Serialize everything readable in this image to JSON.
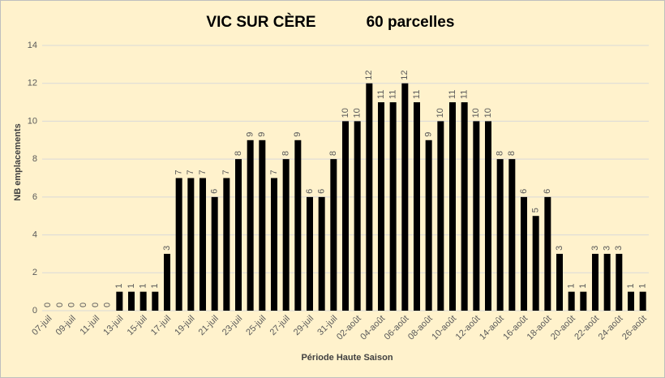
{
  "chart_data": {
    "type": "bar",
    "title": "VIC SUR CÈRE",
    "subtitle": "60 parcelles",
    "x_label": "Période Haute Saison",
    "y_label": "NB emplacements",
    "categories": [
      "07-juil",
      null,
      "09-juil",
      null,
      "11-juil",
      null,
      "13-juil",
      null,
      "15-juil",
      null,
      "17-juil",
      null,
      "19-juil",
      null,
      "21-juil",
      null,
      "23-juil",
      null,
      "25-juil",
      null,
      "27-juil",
      null,
      "29-juil",
      null,
      "31-juil",
      null,
      "02-août",
      null,
      "04-août",
      null,
      "06-août",
      null,
      "08-août",
      null,
      "10-août",
      null,
      "12-août",
      null,
      "14-août",
      null,
      "16-août",
      null,
      "18-août",
      null,
      "20-août",
      null,
      "22-août",
      null,
      "24-août",
      null,
      "26-août"
    ],
    "values": [
      0,
      0,
      0,
      0,
      0,
      0,
      1,
      1,
      1,
      1,
      3,
      7,
      7,
      7,
      6,
      7,
      8,
      9,
      9,
      7,
      8,
      9,
      6,
      6,
      8,
      10,
      10,
      12,
      11,
      11,
      12,
      11,
      9,
      10,
      11,
      11,
      10,
      10,
      8,
      8,
      6,
      5,
      6,
      3,
      1,
      1,
      3,
      3,
      3,
      1,
      1
    ],
    "color": "#000000",
    "ylim": [
      0,
      14
    ],
    "yticks": [
      0,
      2,
      4,
      6,
      8,
      10,
      12,
      14
    ],
    "grid": true
  }
}
